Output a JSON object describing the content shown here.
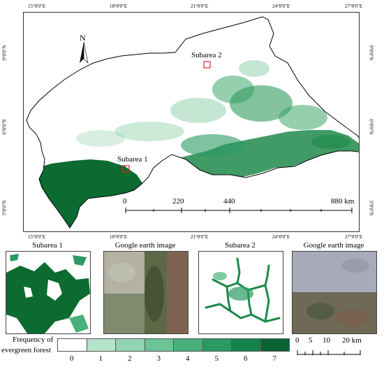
{
  "map": {
    "top_lon_ticks": [
      "15°0'0\"E",
      "18°0'0\"E",
      "21°0'0\"E",
      "24°0'0\"E",
      "27°0'0\"E"
    ],
    "bottom_lon_ticks": [
      "15°0'0\"E",
      "18°0'0\"E",
      "21°0'0\"E",
      "24°0'0\"E",
      "27°0'0\"E"
    ],
    "left_lat_ticks": [
      "9°0'0\"N",
      "6°0'0\"N",
      "3°0'0\"N"
    ],
    "right_lat_ticks": [
      "9°0'0\"N",
      "6°0'0\"N",
      "3°0'0\"N"
    ],
    "north_label": "N",
    "subarea1_label": "Subarea 1",
    "subarea2_label": "Subarea 2",
    "scale_labels": [
      "0",
      "220",
      "440",
      "880 km"
    ],
    "forest_color": "#0b6b30",
    "subarea_box_color": "#e02020"
  },
  "panels": {
    "subarea1_title": "Subarea 1",
    "google1_title": "Google earth image",
    "subarea2_title": "Subarea 2",
    "google2_title": "Google earth image"
  },
  "legend": {
    "title_line1": "Frequency of",
    "title_line2": "evergreen forest",
    "classes": [
      "0",
      "1",
      "2",
      "3",
      "4",
      "5",
      "6",
      "7"
    ],
    "colors": [
      "#ffffff",
      "#b7e3cb",
      "#92d3b1",
      "#6cc396",
      "#48b07b",
      "#2a9a62",
      "#15824c",
      "#0a6432"
    ],
    "scale_labels": [
      "0",
      "5",
      "10",
      "20 km"
    ]
  }
}
